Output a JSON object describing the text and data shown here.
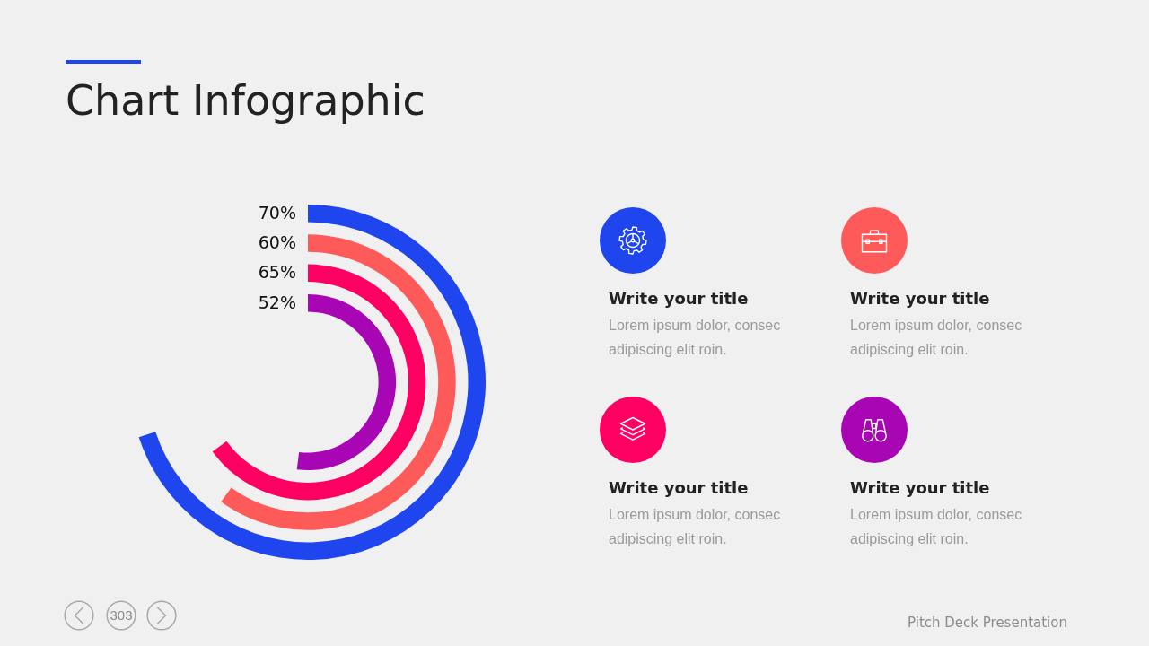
{
  "chart_data": [
    {
      "type": "other",
      "title": "Chart Infographic",
      "categories": [
        null,
        null,
        null,
        null
      ],
      "values": [
        70,
        60,
        65,
        52
      ],
      "colors": [
        "#1e45ee",
        "#fe5a5a",
        "#fe0062",
        "#a805b5"
      ],
      "value_labels": [
        "70%",
        "60%",
        "65%",
        "52%"
      ],
      "annotations": [
        "303"
      ]
    },
    {
      "type": "other",
      "annotations": [
        "Write your title",
        "Lorem ipsum dolor, consec\nadipiscing elit roin.",
        "Write your title",
        "Lorem ipsum dolor, consec\nadipiscing elit roin.",
        "Write your title",
        "Lorem ipsum dolor, consec\nadipiscing elit roin.",
        "Write your title",
        "Lorem ipsum dolor, consec\nadipiscing elit roin.",
        "Pitch Deck Presentation"
      ]
    }
  ]
}
